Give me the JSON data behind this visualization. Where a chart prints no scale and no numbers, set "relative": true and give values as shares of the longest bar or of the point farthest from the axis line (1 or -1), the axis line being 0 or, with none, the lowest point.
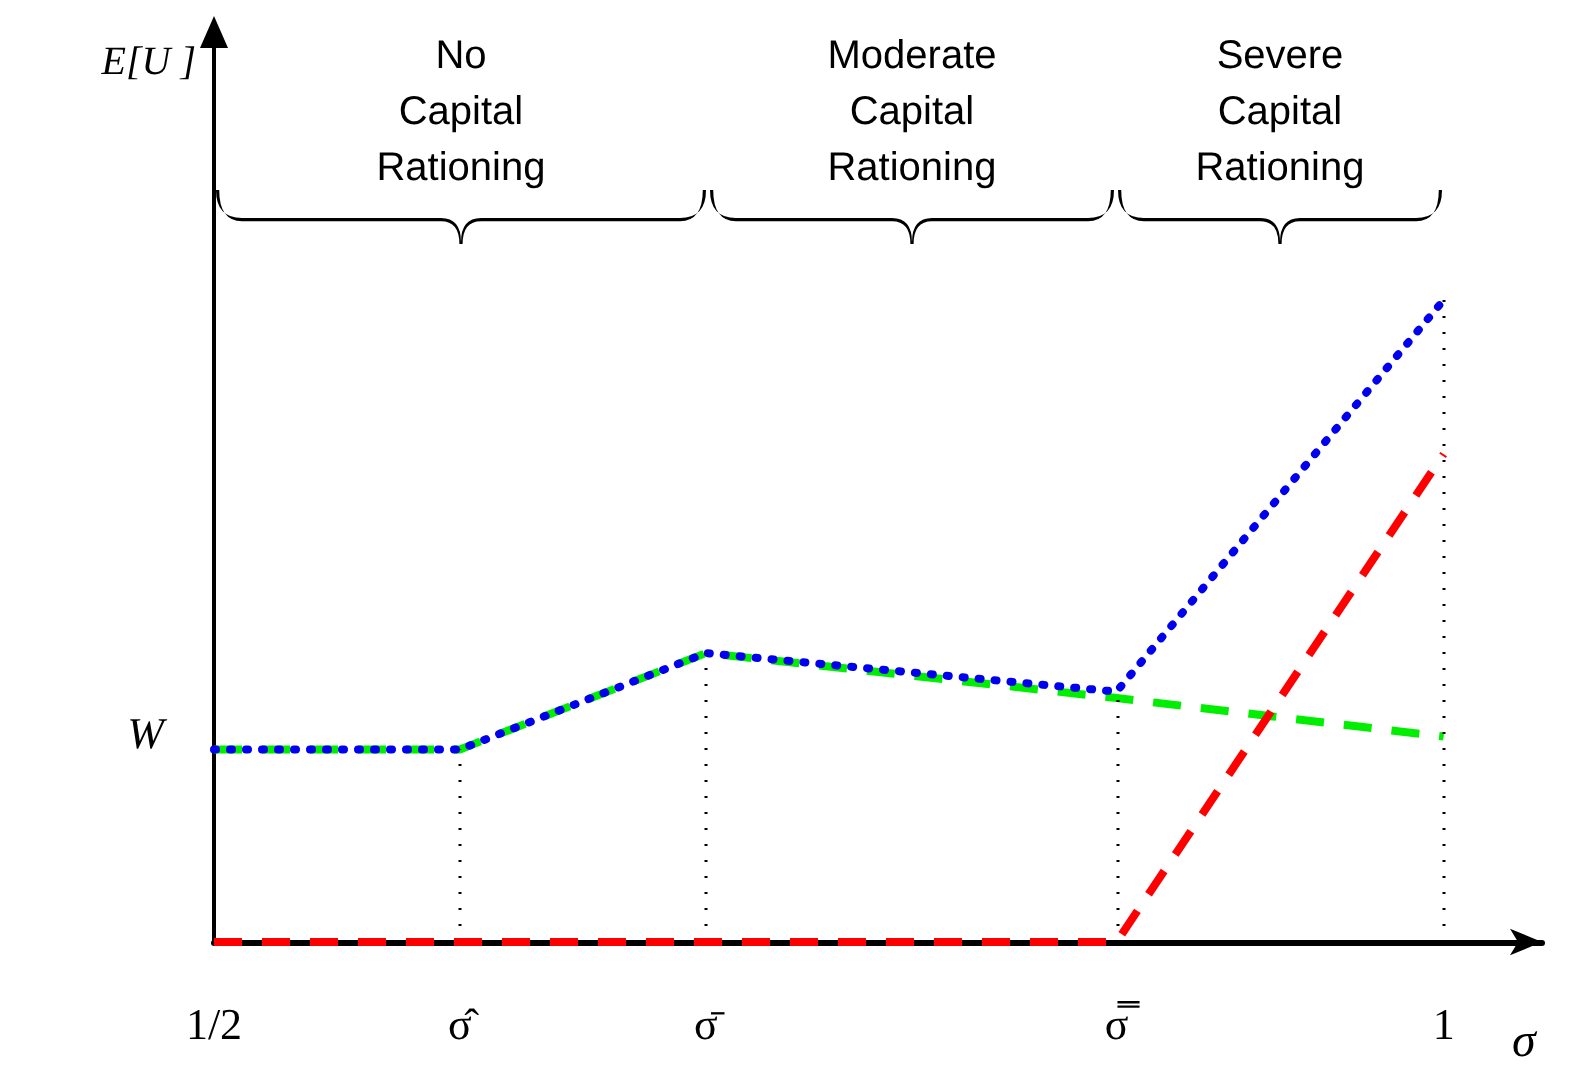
{
  "chart_data": {
    "type": "line",
    "relative": true,
    "xlabel": "σ",
    "xlim": [
      0.5,
      1.04
    ],
    "xticks": [
      {
        "value": 0.5,
        "label": "1/2"
      },
      {
        "value": 0.6,
        "label": "σ̂"
      },
      {
        "value": 0.7,
        "label": "σ̄"
      },
      {
        "value": 0.867,
        "label": "σ̿"
      },
      1
    ],
    "series": [
      {
        "color": "#00ee00",
        "line_style": "dashed",
        "x": [
          0.5,
          0.6,
          0.7,
          0.867,
          1
        ],
        "values": [
          0.3,
          0.3,
          0.45,
          0.38,
          0.32
        ]
      },
      {
        "color": "#0000ee",
        "line_style": "dotted",
        "x": [
          0.5,
          0.6,
          0.7,
          0.867,
          1
        ],
        "values": [
          0.3,
          0.3,
          0.45,
          0.39,
          1
        ]
      },
      {
        "color": "#ff0000",
        "line_style": "dashed",
        "x": [
          0.5,
          0.867,
          1
        ],
        "values": [
          0,
          0,
          0.76
        ]
      }
    ],
    "ref_lines": [
      {
        "axis": "x",
        "value": 0.6,
        "line_style": "dotted"
      },
      {
        "axis": "x",
        "value": 0.7,
        "line_style": "dotted"
      },
      {
        "axis": "x",
        "value": 0.867,
        "line_style": "dotted"
      },
      {
        "axis": "x",
        "value": 1,
        "line_style": "dotted"
      }
    ],
    "annotations": [
      "E[U ]",
      "No\nCapital\nRationing",
      "Moderate\nCapital\nRationing",
      "Severe\nCapital\nRationing",
      {
        "text": "W",
        "x": 0.5,
        "y": 0.3
      }
    ],
    "grid": false
  }
}
